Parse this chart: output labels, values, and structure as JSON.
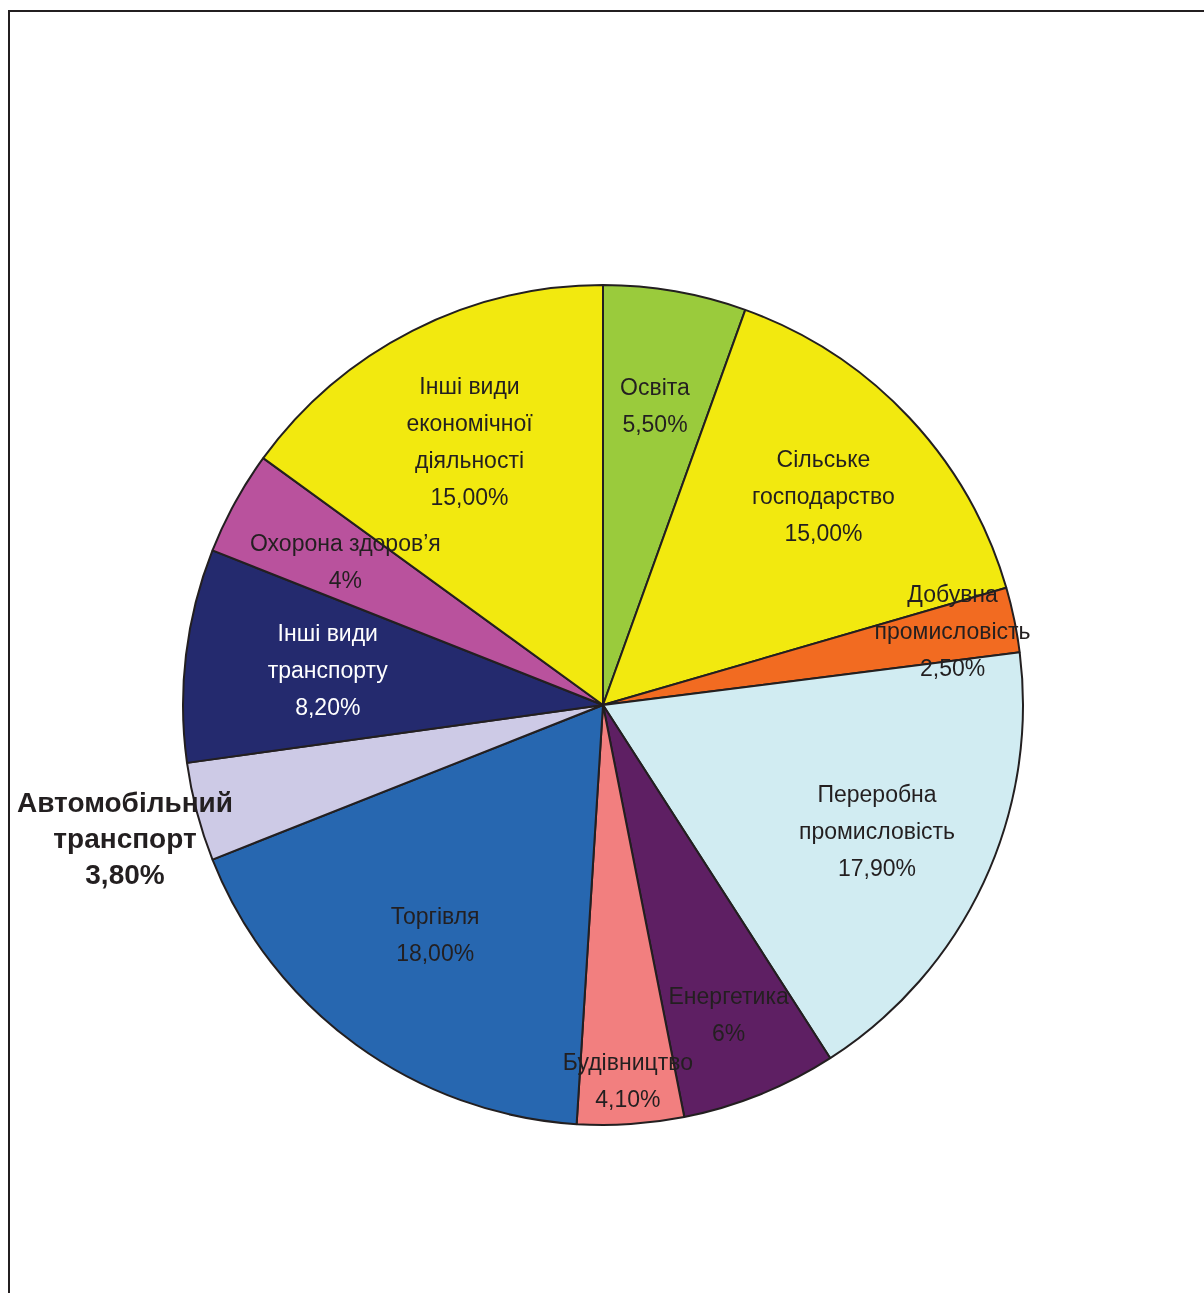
{
  "chart_data": {
    "type": "pie",
    "categories": [
      "Освіта",
      "Сільське\nгосподарство",
      "Добувна\nпромисловість",
      "Переробна\nпромисловість",
      "Енергетика",
      "Будівництво",
      "Торгівля",
      "Автомобільний\nтранспорт",
      "Інші види\nтранспорту",
      "Охорона здоров’я",
      "Інші види\nекономічної\nдіяльності"
    ],
    "values": [
      5.5,
      15,
      2.5,
      17.9,
      6,
      4.1,
      18,
      3.8,
      8.2,
      4,
      15
    ],
    "value_labels": [
      "5,50%",
      "15,00%",
      "2,50%",
      "17,90%",
      "6%",
      "4,10%",
      "18,00%",
      "3,80%",
      "8,20%",
      "4%",
      "15,00%"
    ],
    "colors": [
      "#9acb3c",
      "#f2e90f",
      "#f26b21",
      "#d1ecf2",
      "#5e1f63",
      "#f27f7f",
      "#2767b0",
      "#cdcae6",
      "#242a6e",
      "#b9529d",
      "#f2e90f"
    ],
    "legend": false
  }
}
